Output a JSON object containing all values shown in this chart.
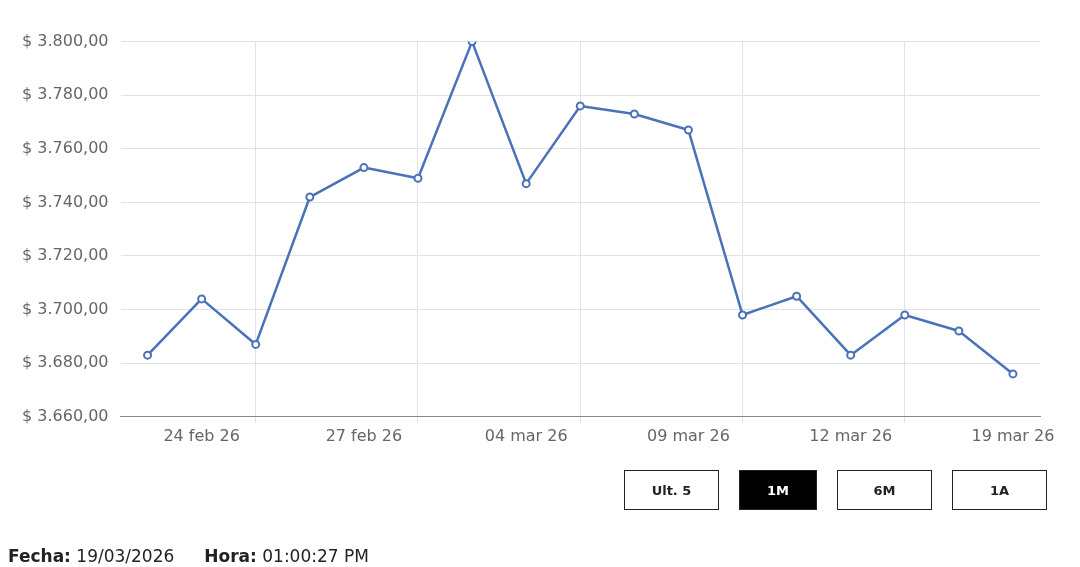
{
  "chart_data": {
    "type": "line",
    "categories": [
      null,
      "24 feb 26",
      null,
      null,
      "27 feb 26",
      null,
      null,
      "04 mar 26",
      null,
      null,
      "09 mar 26",
      null,
      null,
      "12 mar 26",
      null,
      null,
      "19 mar 26"
    ],
    "series": [
      {
        "color": "#4a72b8",
        "values": [
          3683,
          3704,
          3687,
          3742,
          3753,
          3749,
          3800,
          3747,
          3776,
          3773,
          3767,
          3698,
          3705,
          3683,
          3698,
          3692,
          3676
        ]
      }
    ],
    "ylim": [
      3660,
      3800
    ],
    "yticks": [
      {
        "value": 3660,
        "label": "$ 3.660,00"
      },
      {
        "value": 3680,
        "label": "$ 3.680,00"
      },
      {
        "value": 3700,
        "label": "$ 3.700,00"
      },
      {
        "value": 3720,
        "label": "$ 3.720,00"
      },
      {
        "value": 3740,
        "label": "$ 3.740,00"
      },
      {
        "value": 3760,
        "label": "$ 3.760,00"
      },
      {
        "value": 3780,
        "label": "$ 3.780,00"
      },
      {
        "value": 3800,
        "label": "$ 3.800,00"
      }
    ],
    "grid": true,
    "marker": "circle",
    "line_style": "solid",
    "annotations": [
      "Ult. 5",
      "1M",
      "6M",
      "1A",
      "Fecha: 19/03/2026",
      "Hora: 01:00:27 PM"
    ]
  }
}
